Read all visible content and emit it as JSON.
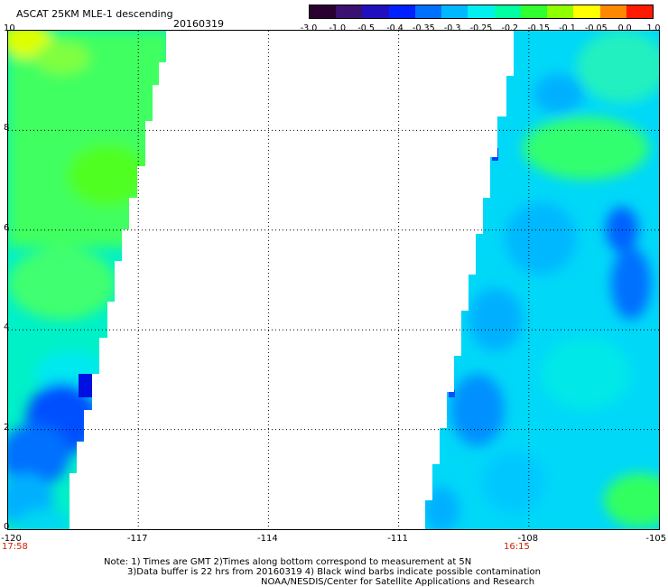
{
  "header": {
    "title": "ASCAT 25KM MLE-1 descending",
    "date": "20160319"
  },
  "colorbar": {
    "labels": [
      "-3.0",
      "-1.0",
      "-0.5",
      "-0.4",
      "-0.35",
      "-0.3",
      "-0.25",
      "-0.2",
      "-0.15",
      "-0.1",
      "-0.05",
      "0.0",
      "1.0"
    ],
    "colors": [
      "#2a0030",
      "#3a1070",
      "#2010c0",
      "#0020ff",
      "#0070ff",
      "#00b8ff",
      "#00f0f0",
      "#00ffa0",
      "#30ff30",
      "#90ff00",
      "#ffff00",
      "#ff8800",
      "#ff1a00"
    ]
  },
  "axes": {
    "x_labels": [
      "-120",
      "-117",
      "-114",
      "-111",
      "-108",
      "-105"
    ],
    "y_labels": [
      "0",
      "2",
      "4",
      "6",
      "8",
      "10"
    ],
    "x_range": [
      -120,
      -105
    ],
    "y_range": [
      0,
      10
    ]
  },
  "times": {
    "left": "17:58",
    "right": "16:15"
  },
  "notes": {
    "line1": "Note: 1) Times are GMT 2)Times along bottom correspond to measurement at 5N",
    "line2": "3)Data buffer is 22 hrs from 20160319 4) Black wind barbs indicate possible contamination",
    "line3": "NOAA/NESDIS/Center for Satellite Applications and Research"
  }
}
